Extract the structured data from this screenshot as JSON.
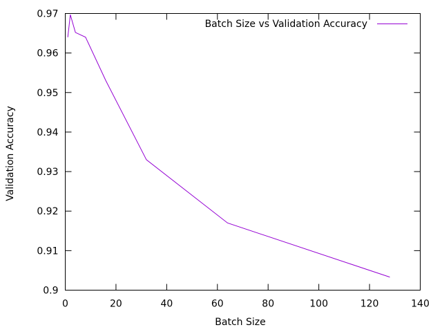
{
  "chart_data": {
    "type": "line",
    "title": "",
    "xlabel": "Batch Size",
    "ylabel": "Validation Accuracy",
    "xlim": [
      0,
      140
    ],
    "ylim": [
      0.9,
      0.97
    ],
    "x_ticks": [
      "0",
      "20",
      "40",
      "60",
      "80",
      "100",
      "120",
      "140"
    ],
    "y_ticks": [
      "0.9",
      "0.91",
      "0.92",
      "0.93",
      "0.94",
      "0.95",
      "0.96",
      "0.97"
    ],
    "grid": false,
    "legend_position": "top-right",
    "series": [
      {
        "name": "Batch Size vs Validation Accuracy",
        "color": "#9400d3",
        "x": [
          1,
          2,
          4,
          8,
          16,
          32,
          64,
          128
        ],
        "y": [
          0.964,
          0.9697,
          0.9652,
          0.964,
          0.953,
          0.933,
          0.917,
          0.9033
        ]
      }
    ]
  }
}
